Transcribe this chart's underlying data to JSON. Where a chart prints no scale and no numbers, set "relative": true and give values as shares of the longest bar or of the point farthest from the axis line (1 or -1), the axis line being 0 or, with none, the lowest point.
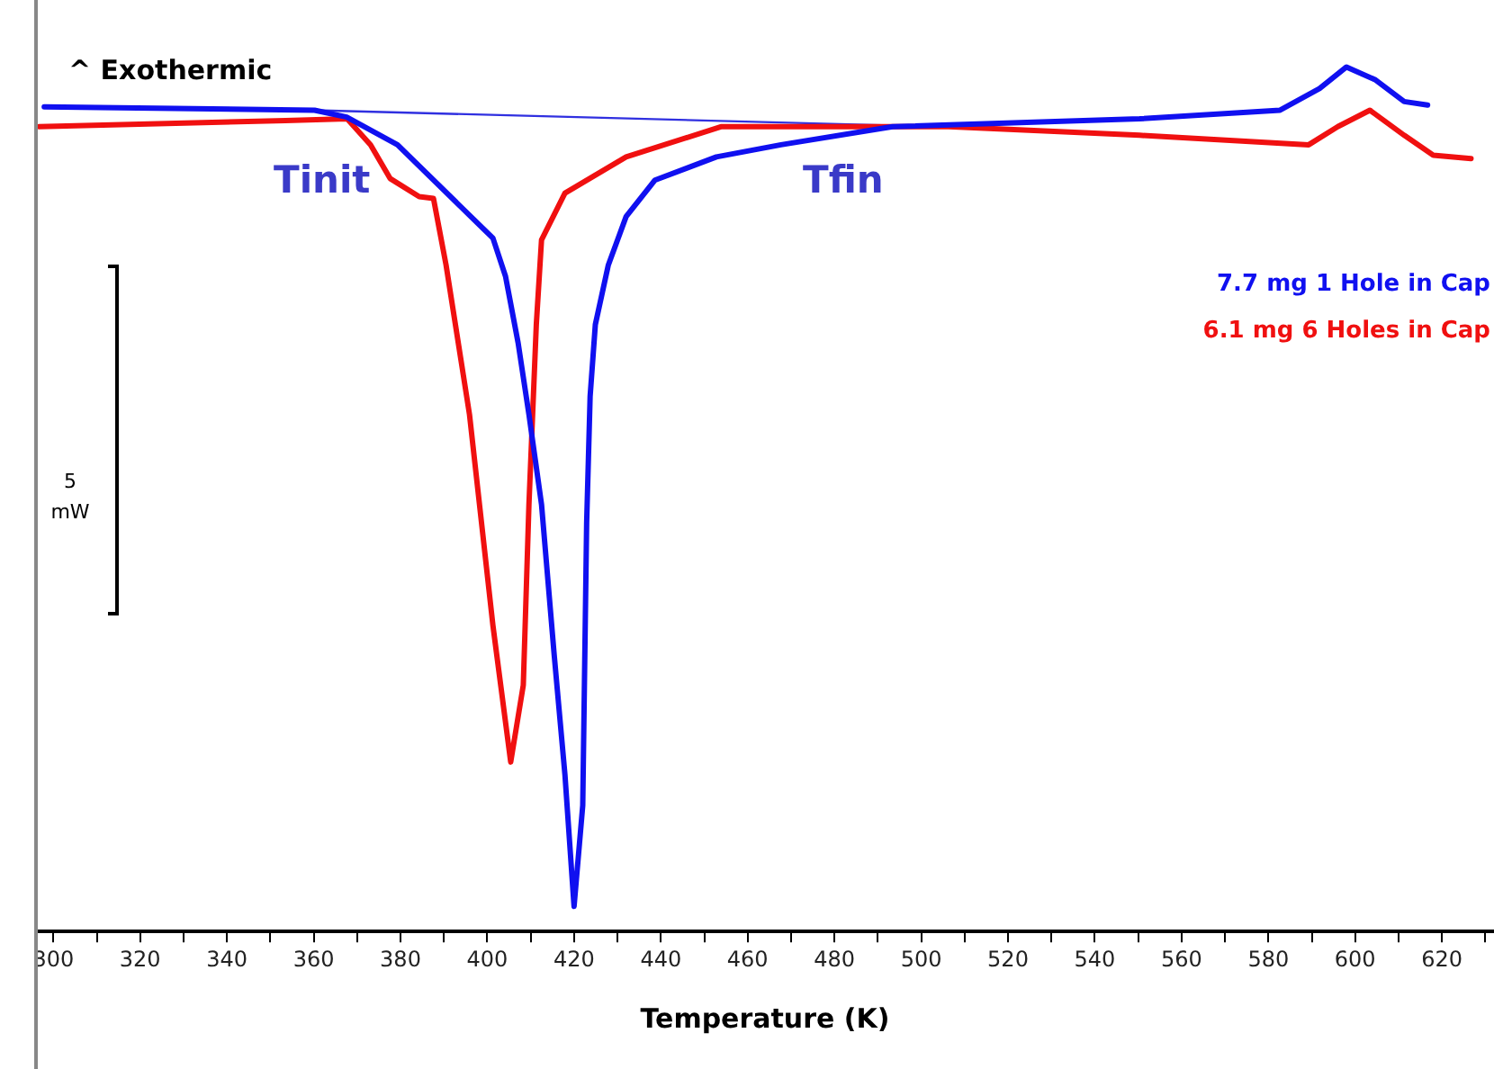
{
  "chart_data": {
    "type": "line",
    "relative": true,
    "xlabel": "Temperature (K)",
    "xlim": [
      296,
      632
    ],
    "xticks": [
      300,
      {
        "value": 310,
        "label": null
      },
      320,
      {
        "value": 330,
        "label": null
      },
      340,
      {
        "value": 350,
        "label": null
      },
      360,
      {
        "value": 370,
        "label": null
      },
      380,
      {
        "value": 390,
        "label": null
      },
      400,
      {
        "value": 410,
        "label": null
      },
      420,
      {
        "value": 430,
        "label": null
      },
      440,
      {
        "value": 450,
        "label": null
      },
      460,
      {
        "value": 470,
        "label": null
      },
      480,
      {
        "value": 490,
        "label": null
      },
      500,
      {
        "value": 510,
        "label": null
      },
      520,
      {
        "value": 530,
        "label": null
      },
      540,
      {
        "value": 550,
        "label": null
      },
      560,
      {
        "value": 570,
        "label": null
      },
      580,
      {
        "value": 590,
        "label": null
      },
      600,
      {
        "value": 610,
        "label": null
      },
      620,
      {
        "value": 630,
        "label": null
      }
    ],
    "grid": false,
    "legend": "right",
    "marker": "none",
    "line_style": "solid",
    "series": [
      {
        "name": "7.7 mg 1 Hole in Cap",
        "color": "#1010f0",
        "x": [
          297.9,
          360.2,
          367.6,
          379.3,
          401.3,
          404.2,
          407.1,
          409.6,
          412.5,
          415.4,
          417.9,
          420.0,
          422.0,
          422.9,
          423.7,
          424.9,
          427.9,
          432.0,
          438.6,
          452.8,
          467.7,
          493.4,
          550.3,
          582.7,
          591.8,
          598.0,
          604.7,
          611.3,
          616.7
        ],
        "values": [
          0.954,
          0.95,
          0.942,
          0.91,
          0.802,
          0.758,
          0.681,
          0.598,
          0.494,
          0.321,
          0.181,
          0.029,
          0.146,
          0.473,
          0.619,
          0.702,
          0.771,
          0.827,
          0.869,
          0.896,
          0.91,
          0.931,
          0.94,
          0.95,
          0.975,
          1,
          0.985,
          0.96,
          0.956
        ]
      },
      {
        "name": "6.1 mg 6 Holes in Cap",
        "color": "#f01010",
        "x": [
          296.7,
          353.5,
          367.7,
          373.1,
          377.6,
          384.3,
          387.6,
          390.5,
          395.9,
          401.3,
          405.4,
          408.3,
          409.6,
          411.3,
          412.5,
          417.9,
          432.0,
          454.0,
          506.3,
          550.3,
          589.3,
          596.0,
          603.4,
          611.3,
          618.0,
          626.7
        ],
        "values": [
          0.931,
          0.938,
          0.94,
          0.91,
          0.871,
          0.85,
          0.848,
          0.771,
          0.598,
          0.354,
          0.196,
          0.285,
          0.494,
          0.702,
          0.8,
          0.854,
          0.896,
          0.931,
          0.931,
          0.921,
          0.91,
          0.931,
          0.95,
          0.921,
          0.898,
          0.894
        ]
      },
      {
        "color": "#3030e0",
        "x": [
          360.0,
          503.8
        ],
        "values": [
          0.95,
          0.931
        ]
      }
    ],
    "annotations": [
      "^ Exothermic",
      "5 mW",
      "Tinit",
      "Tfin"
    ]
  }
}
